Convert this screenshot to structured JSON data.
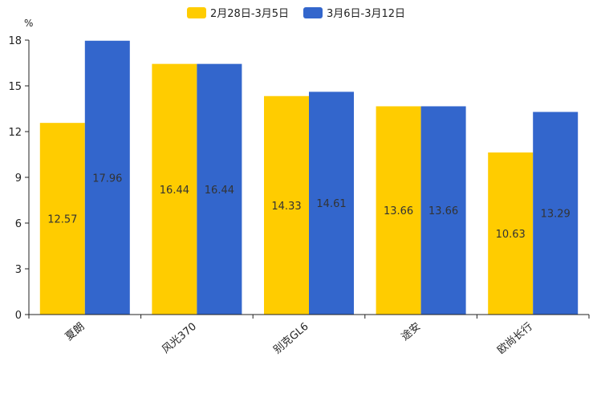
{
  "chart_data": {
    "type": "bar",
    "unit": "%",
    "categories": [
      "夏朗",
      "风光370",
      "别克GL6",
      "途安",
      "欧尚长行"
    ],
    "series": [
      {
        "name": "2月28日-3月5日",
        "color": "#FFCC00",
        "values": [
          12.57,
          16.44,
          14.33,
          13.66,
          10.63
        ]
      },
      {
        "name": "3月6日-3月12日",
        "color": "#3366CC",
        "values": [
          17.96,
          16.44,
          14.61,
          13.66,
          13.29
        ]
      }
    ],
    "ylim": [
      0,
      18
    ],
    "yticks": [
      0,
      3,
      6,
      9,
      12,
      15,
      18
    ],
    "legend_position": "top-center",
    "grid": false
  }
}
